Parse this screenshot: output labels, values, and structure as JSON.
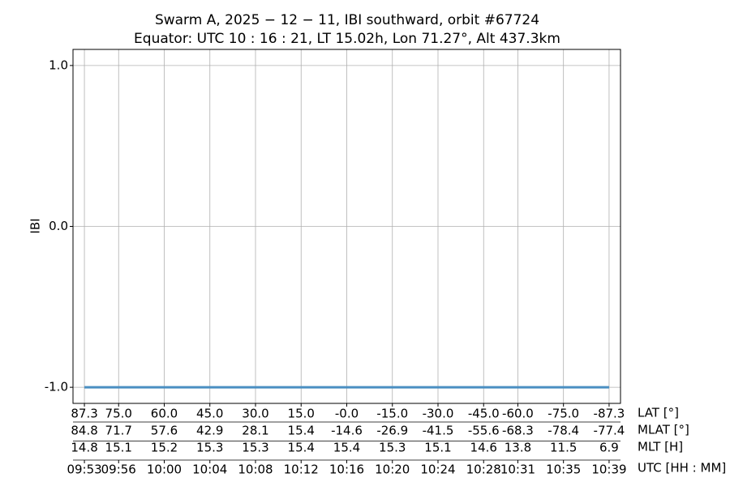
{
  "chart_data": {
    "type": "line",
    "title": "Swarm A,  2025 − 12 − 11,  IBI southward,  orbit #67724",
    "subtitle": "Equator:  UTC 10 : 16 : 21,  LT 15.02h,  Lon 71.27°,  Alt 437.3km",
    "y_label": "IBI",
    "x_label": "UTC [HH : MM]",
    "x": [
      "09:53",
      "09:56",
      "10:00",
      "10:04",
      "10:08",
      "10:12",
      "10:16",
      "10:20",
      "10:24",
      "10:28",
      "10:31",
      "10:35",
      "10:39"
    ],
    "xlim": [
      "09:52",
      "10:40"
    ],
    "extra_rows": [
      {
        "name": "LAT [°]",
        "labels": [
          "87.3",
          "75.0",
          "60.0",
          "45.0",
          "30.0",
          "15.0",
          "-0.0",
          "-15.0",
          "-30.0",
          "-45.0",
          "-60.0",
          "-75.0",
          "-87.3"
        ]
      },
      {
        "name": "MLAT [°]",
        "labels": [
          "84.8",
          "71.7",
          "57.6",
          "42.9",
          "28.1",
          "15.4",
          "-14.6",
          "-26.9",
          "-41.5",
          "-55.6",
          "-68.3",
          "-78.4",
          "-77.4"
        ]
      },
      {
        "name": "MLT [H]",
        "labels": [
          "14.8",
          "15.1",
          "15.2",
          "15.3",
          "15.3",
          "15.4",
          "15.4",
          "15.3",
          "15.1",
          "14.6",
          "13.8",
          "11.5",
          "6.9"
        ]
      }
    ],
    "series": [
      {
        "color": "#4a8fc2",
        "values": [
          -1,
          -1,
          -1,
          -1,
          -1,
          -1,
          -1,
          -1,
          -1,
          -1,
          -1,
          -1,
          -1
        ]
      }
    ],
    "ylim": [
      -1.1,
      1.1
    ],
    "yticks": [
      {
        "value": -1,
        "label": "-1.0"
      },
      {
        "value": 0,
        "label": "0.0"
      },
      {
        "value": 1,
        "label": "1.0"
      }
    ],
    "grid": true
  }
}
